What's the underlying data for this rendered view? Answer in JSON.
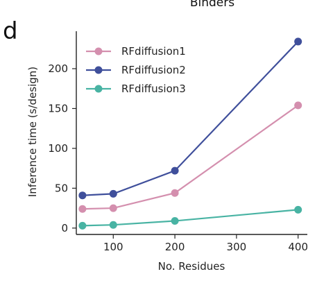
{
  "panel_letter": "d",
  "top_title": "Binders",
  "chart_data": {
    "type": "line",
    "title": "",
    "xlabel": "No. Residues",
    "ylabel": "Inference time (s/design)",
    "xlim": [
      40,
      415
    ],
    "ylim": [
      -8,
      247
    ],
    "x_ticks": [
      100,
      200,
      300,
      400
    ],
    "y_ticks": [
      0,
      50,
      100,
      150,
      200
    ],
    "grid": false,
    "legend_position": "top-left",
    "series": [
      {
        "name": "RFdiffusion1",
        "color": "#d48fae",
        "x": [
          50,
          100,
          200,
          400
        ],
        "y": [
          24,
          25,
          44,
          154
        ]
      },
      {
        "name": "RFdiffusion2",
        "color": "#3f4f9b",
        "x": [
          50,
          100,
          200,
          400
        ],
        "y": [
          41,
          43,
          72,
          234
        ]
      },
      {
        "name": "RFdiffusion3",
        "color": "#48b3a3",
        "x": [
          50,
          100,
          200,
          400
        ],
        "y": [
          3,
          4,
          9,
          23
        ]
      }
    ]
  }
}
